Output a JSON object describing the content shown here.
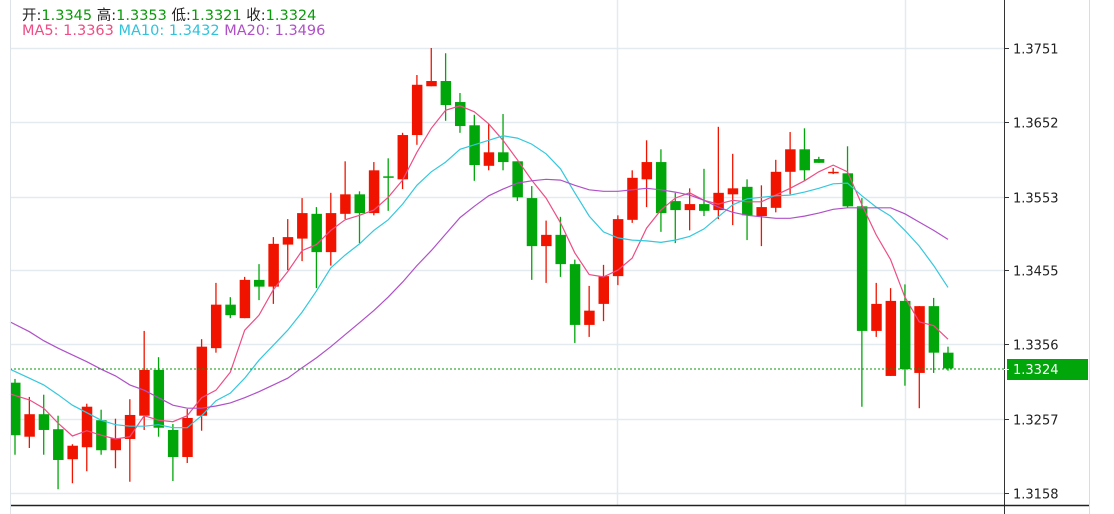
{
  "header": {
    "open_label": "开:",
    "open": "1.3345",
    "high_label": "高:",
    "high": "1.3353",
    "low_label": "低:",
    "low": "1.3321",
    "close_label": "收:",
    "close": "1.3324",
    "ma5": "MA5: 1.3363",
    "ma10": "MA10: 1.3432",
    "ma20": "MA20: 1.3496"
  },
  "colors": {
    "up": "#f01400",
    "down": "#00a60a",
    "ma5": "#ee4d85",
    "ma10": "#34c8de",
    "ma20": "#b050c8",
    "grid": "#e3ebf1",
    "last_price": "#00a60a"
  },
  "chart_data": {
    "type": "candlestick",
    "title": "",
    "xlabel": "",
    "ylabel": "",
    "ylim": [
      1.3158,
      1.3751
    ],
    "y_ticks": [
      "1.3751",
      "1.3652",
      "1.3553",
      "1.3455",
      "1.3356",
      "1.3257",
      "1.3158"
    ],
    "last_price": "1.3324",
    "grid": true,
    "candles": [
      [
        1.3305,
        1.331,
        1.3209,
        1.3235
      ],
      [
        1.3233,
        1.3286,
        1.3218,
        1.3263
      ],
      [
        1.3263,
        1.3289,
        1.3209,
        1.3242
      ],
      [
        1.3243,
        1.3261,
        1.3163,
        1.3202
      ],
      [
        1.3203,
        1.3223,
        1.3171,
        1.3221
      ],
      [
        1.3219,
        1.3277,
        1.3187,
        1.3273
      ],
      [
        1.3255,
        1.3269,
        1.3209,
        1.3215
      ],
      [
        1.3215,
        1.3257,
        1.3191,
        1.3231
      ],
      [
        1.323,
        1.3283,
        1.3173,
        1.3262
      ],
      [
        1.3261,
        1.3374,
        1.3242,
        1.3322
      ],
      [
        1.3322,
        1.3339,
        1.3233,
        1.3245
      ],
      [
        1.3242,
        1.325,
        1.3174,
        1.3206
      ],
      [
        1.3206,
        1.327,
        1.3198,
        1.3258
      ],
      [
        1.3261,
        1.3363,
        1.3241,
        1.3353
      ],
      [
        1.3351,
        1.3438,
        1.3345,
        1.3409
      ],
      [
        1.3409,
        1.3419,
        1.3391,
        1.3395
      ],
      [
        1.3391,
        1.3446,
        1.3391,
        1.3442
      ],
      [
        1.3442,
        1.3463,
        1.3415,
        1.3433
      ],
      [
        1.3433,
        1.3499,
        1.341,
        1.349
      ],
      [
        1.3489,
        1.3523,
        1.3455,
        1.3499
      ],
      [
        1.3497,
        1.3551,
        1.3467,
        1.3531
      ],
      [
        1.353,
        1.3539,
        1.3431,
        1.3479
      ],
      [
        1.3479,
        1.3558,
        1.3461,
        1.3531
      ],
      [
        1.353,
        1.36,
        1.3523,
        1.3556
      ],
      [
        1.3556,
        1.356,
        1.3491,
        1.3531
      ],
      [
        1.3531,
        1.3599,
        1.3528,
        1.3588
      ],
      [
        1.358,
        1.3604,
        1.3534,
        1.3578
      ],
      [
        1.3576,
        1.3638,
        1.3563,
        1.3635
      ],
      [
        1.3635,
        1.3715,
        1.3622,
        1.3702
      ],
      [
        1.37,
        1.3751,
        1.37,
        1.3707
      ],
      [
        1.3707,
        1.3744,
        1.3654,
        1.3675
      ],
      [
        1.3679,
        1.3691,
        1.3638,
        1.3647
      ],
      [
        1.3648,
        1.3662,
        1.3574,
        1.3595
      ],
      [
        1.3594,
        1.365,
        1.3588,
        1.3612
      ],
      [
        1.3612,
        1.3663,
        1.3588,
        1.3599
      ],
      [
        1.36,
        1.36,
        1.3547,
        1.3552
      ],
      [
        1.3551,
        1.3567,
        1.3442,
        1.3487
      ],
      [
        1.3487,
        1.3521,
        1.3438,
        1.3502
      ],
      [
        1.3502,
        1.3526,
        1.3446,
        1.3463
      ],
      [
        1.3463,
        1.3469,
        1.3358,
        1.3382
      ],
      [
        1.3382,
        1.3434,
        1.3366,
        1.3401
      ],
      [
        1.341,
        1.3462,
        1.3387,
        1.3447
      ],
      [
        1.3447,
        1.3528,
        1.3435,
        1.3523
      ],
      [
        1.3522,
        1.3588,
        1.3518,
        1.3578
      ],
      [
        1.3576,
        1.3628,
        1.3539,
        1.3599
      ],
      [
        1.3599,
        1.3616,
        1.3506,
        1.3531
      ],
      [
        1.3547,
        1.3558,
        1.3491,
        1.3535
      ],
      [
        1.3535,
        1.3564,
        1.3508,
        1.3543
      ],
      [
        1.3543,
        1.359,
        1.3527,
        1.3534
      ],
      [
        1.3535,
        1.3646,
        1.3523,
        1.3558
      ],
      [
        1.3556,
        1.361,
        1.3515,
        1.3564
      ],
      [
        1.3566,
        1.3576,
        1.3495,
        1.3528
      ],
      [
        1.3527,
        1.3568,
        1.3487,
        1.3539
      ],
      [
        1.3538,
        1.3602,
        1.3532,
        1.3586
      ],
      [
        1.3586,
        1.3639,
        1.3556,
        1.3616
      ],
      [
        1.3616,
        1.3644,
        1.3574,
        1.3588
      ],
      [
        1.3603,
        1.3606,
        1.3598,
        1.3598
      ],
      [
        1.3584,
        1.3591,
        1.3583,
        1.3586
      ],
      [
        1.3584,
        1.362,
        1.3538,
        1.354
      ],
      [
        1.354,
        1.3551,
        1.3273,
        1.3374
      ],
      [
        1.3374,
        1.3438,
        1.3366,
        1.341
      ],
      [
        1.3314,
        1.3431,
        1.3314,
        1.3414
      ],
      [
        1.3414,
        1.3436,
        1.3301,
        1.3323
      ],
      [
        1.3318,
        1.3407,
        1.3271,
        1.3407
      ],
      [
        1.3407,
        1.3418,
        1.3318,
        1.3345
      ],
      [
        1.3345,
        1.3353,
        1.3321,
        1.3324
      ]
    ],
    "series": [
      {
        "name": "MA5",
        "values": [
          1.329,
          1.3282,
          1.3271,
          1.3251,
          1.3234,
          1.3241,
          1.3235,
          1.323,
          1.3233,
          1.3261,
          1.3255,
          1.3253,
          1.3261,
          1.3285,
          1.3295,
          1.3319,
          1.3375,
          1.3395,
          1.3429,
          1.3453,
          1.3481,
          1.3489,
          1.3508,
          1.3522,
          1.3528,
          1.3535,
          1.3552,
          1.3575,
          1.3612,
          1.3644,
          1.3668,
          1.3674,
          1.3666,
          1.365,
          1.3628,
          1.3602,
          1.3575,
          1.3551,
          1.3518,
          1.3478,
          1.3449,
          1.3446,
          1.3455,
          1.3471,
          1.3511,
          1.3535,
          1.3551,
          1.3558,
          1.3548,
          1.3543,
          1.3548,
          1.3546,
          1.3546,
          1.3555,
          1.3564,
          1.3574,
          1.3586,
          1.3595,
          1.3586,
          1.3542,
          1.3502,
          1.3469,
          1.3419,
          1.3386,
          1.3381,
          1.3363
        ]
      },
      {
        "name": "MA10",
        "values": [
          1.3323,
          1.3311,
          1.3302,
          1.3289,
          1.3275,
          1.3265,
          1.3255,
          1.3249,
          1.3247,
          1.3247,
          1.3249,
          1.3245,
          1.3245,
          1.3261,
          1.3281,
          1.3291,
          1.3311,
          1.3335,
          1.3355,
          1.3375,
          1.3399,
          1.3427,
          1.3458,
          1.3475,
          1.349,
          1.3508,
          1.3522,
          1.3543,
          1.3568,
          1.3586,
          1.3599,
          1.3616,
          1.3622,
          1.3628,
          1.3634,
          1.3631,
          1.3623,
          1.361,
          1.359,
          1.3558,
          1.3527,
          1.3506,
          1.3498,
          1.3495,
          1.3494,
          1.3492,
          1.3495,
          1.35,
          1.351,
          1.3526,
          1.3542,
          1.355,
          1.3552,
          1.3554,
          1.3555,
          1.3559,
          1.3564,
          1.357,
          1.3571,
          1.3554,
          1.3539,
          1.3527,
          1.3508,
          1.3487,
          1.3461,
          1.3432
        ]
      },
      {
        "name": "MA20",
        "values": [
          1.3386,
          1.3373,
          1.3361,
          1.3351,
          1.3342,
          1.3333,
          1.3323,
          1.3314,
          1.3302,
          1.3295,
          1.3285,
          1.3275,
          1.3271,
          1.3271,
          1.3274,
          1.3278,
          1.3285,
          1.3293,
          1.3302,
          1.3311,
          1.3325,
          1.3338,
          1.3353,
          1.3369,
          1.3385,
          1.3401,
          1.3419,
          1.3439,
          1.3461,
          1.3481,
          1.3503,
          1.3525,
          1.354,
          1.3554,
          1.3563,
          1.3571,
          1.3574,
          1.3576,
          1.3575,
          1.3568,
          1.3562,
          1.356,
          1.356,
          1.3562,
          1.3564,
          1.3562,
          1.3559,
          1.3555,
          1.3548,
          1.3539,
          1.3532,
          1.3528,
          1.3526,
          1.3524,
          1.3524,
          1.3527,
          1.3531,
          1.3536,
          1.3538,
          1.3538,
          1.3538,
          1.3538,
          1.353,
          1.3519,
          1.3508,
          1.3496
        ]
      }
    ]
  }
}
